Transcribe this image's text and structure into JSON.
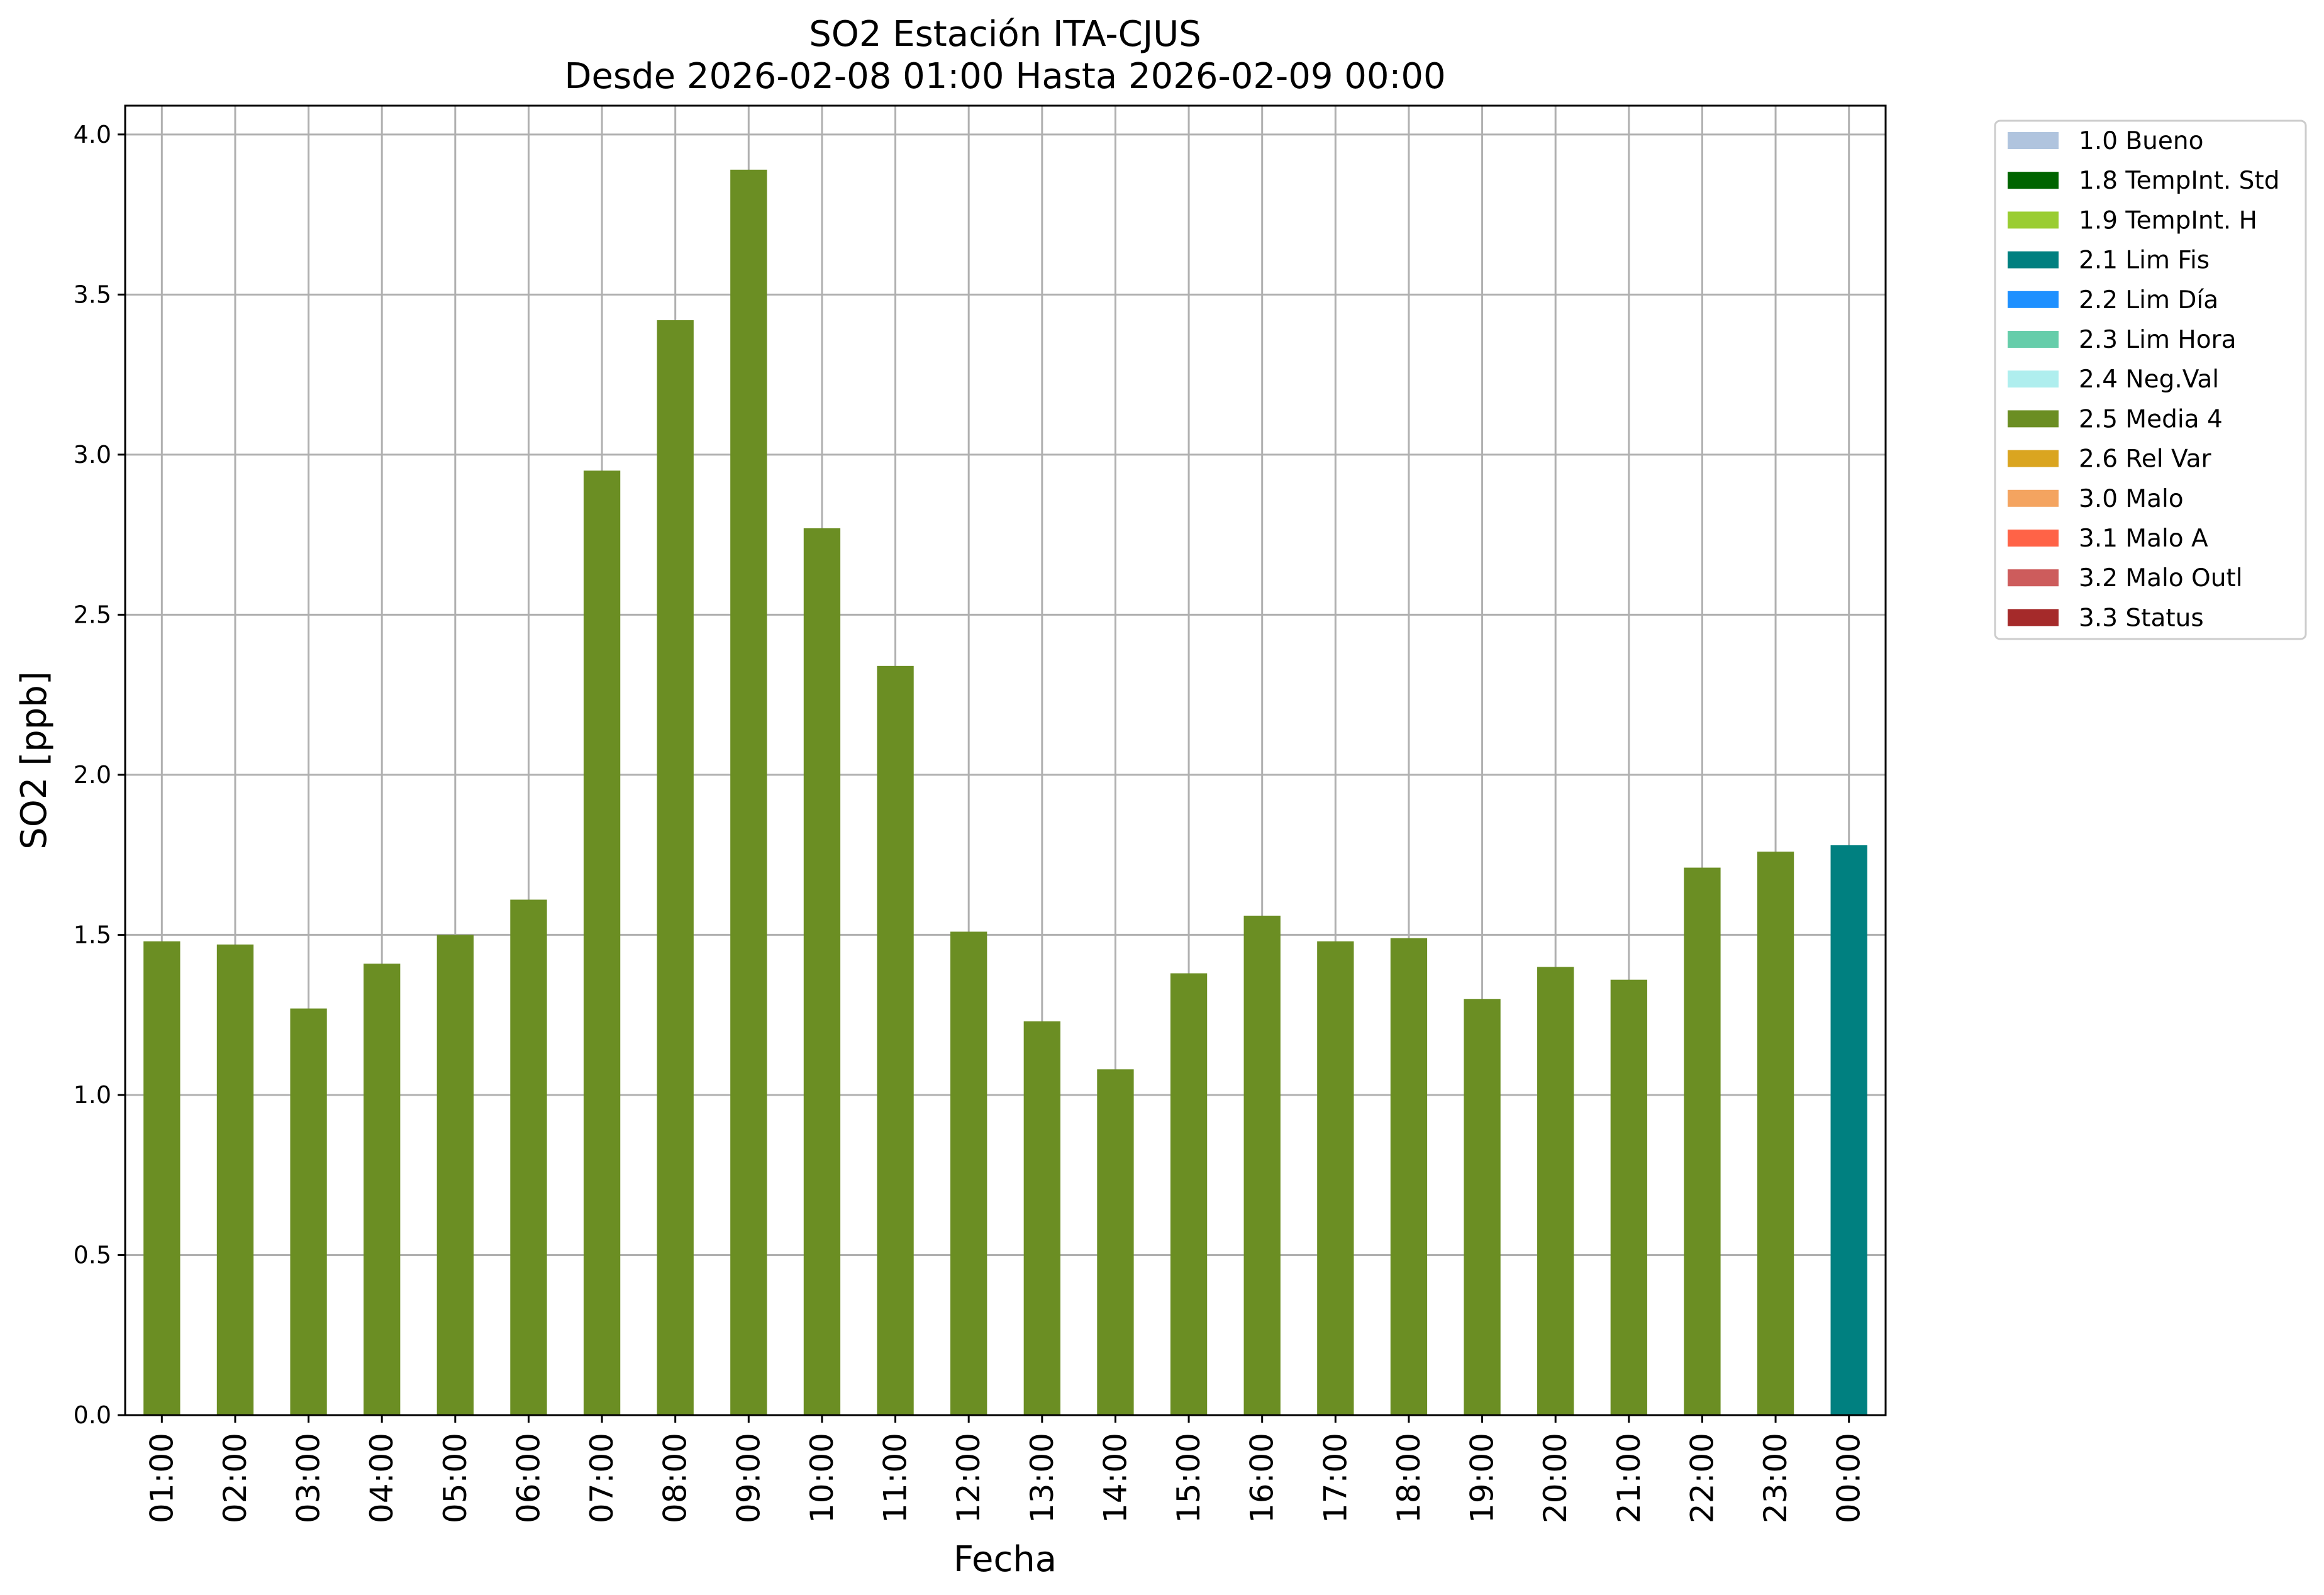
{
  "chart_data": {
    "type": "bar",
    "title": "SO2 Estación ITA-CJUS",
    "subtitle": "Desde 2026-02-08 01:00 Hasta 2026-02-09 00:00",
    "xlabel": "Fecha",
    "ylabel": "SO2 [ppb]",
    "ylim": [
      0,
      4.09
    ],
    "yticks": [
      "0.0",
      "0.5",
      "1.0",
      "1.5",
      "2.0",
      "2.5",
      "3.0",
      "3.5",
      "4.0"
    ],
    "grid": true,
    "legend_position": "outside-top-right",
    "categories": [
      "01:00",
      "02:00",
      "03:00",
      "04:00",
      "05:00",
      "06:00",
      "07:00",
      "08:00",
      "09:00",
      "10:00",
      "11:00",
      "12:00",
      "13:00",
      "14:00",
      "15:00",
      "16:00",
      "17:00",
      "18:00",
      "19:00",
      "20:00",
      "21:00",
      "22:00",
      "23:00",
      "00:00"
    ],
    "values": [
      1.48,
      1.47,
      1.27,
      1.41,
      1.5,
      1.61,
      2.95,
      3.42,
      3.89,
      2.77,
      2.34,
      1.51,
      1.23,
      1.08,
      1.38,
      1.56,
      1.48,
      1.49,
      1.3,
      1.4,
      1.36,
      1.71,
      1.76,
      1.78
    ],
    "flags": [
      "2.5 Media 4",
      "2.5 Media 4",
      "2.5 Media 4",
      "2.5 Media 4",
      "2.5 Media 4",
      "2.5 Media 4",
      "2.5 Media 4",
      "2.5 Media 4",
      "2.5 Media 4",
      "2.5 Media 4",
      "2.5 Media 4",
      "2.5 Media 4",
      "2.5 Media 4",
      "2.5 Media 4",
      "2.5 Media 4",
      "2.5 Media 4",
      "2.5 Media 4",
      "2.5 Media 4",
      "2.5 Media 4",
      "2.5 Media 4",
      "2.5 Media 4",
      "2.5 Media 4",
      "2.5 Media 4",
      "2.1 Lim Fis"
    ],
    "legend": [
      {
        "label": "1.0 Bueno",
        "color": "#b0c4de"
      },
      {
        "label": "1.8 TempInt. Std",
        "color": "#006400"
      },
      {
        "label": "1.9 TempInt. H",
        "color": "#9acd32"
      },
      {
        "label": "2.1 Lim Fis",
        "color": "#008080"
      },
      {
        "label": "2.2 Lim Día",
        "color": "#1e90ff"
      },
      {
        "label": "2.3 Lim Hora",
        "color": "#66cdaa"
      },
      {
        "label": "2.4 Neg.Val",
        "color": "#afeeee"
      },
      {
        "label": "2.5 Media 4",
        "color": "#6b8e23"
      },
      {
        "label": "2.6 Rel Var",
        "color": "#daa520"
      },
      {
        "label": "3.0 Malo",
        "color": "#f4a460"
      },
      {
        "label": "3.1 Malo A",
        "color": "#ff6347"
      },
      {
        "label": "3.2 Malo Outl",
        "color": "#cd5c5c"
      },
      {
        "label": "3.3 Status",
        "color": "#a52a2a"
      }
    ]
  }
}
